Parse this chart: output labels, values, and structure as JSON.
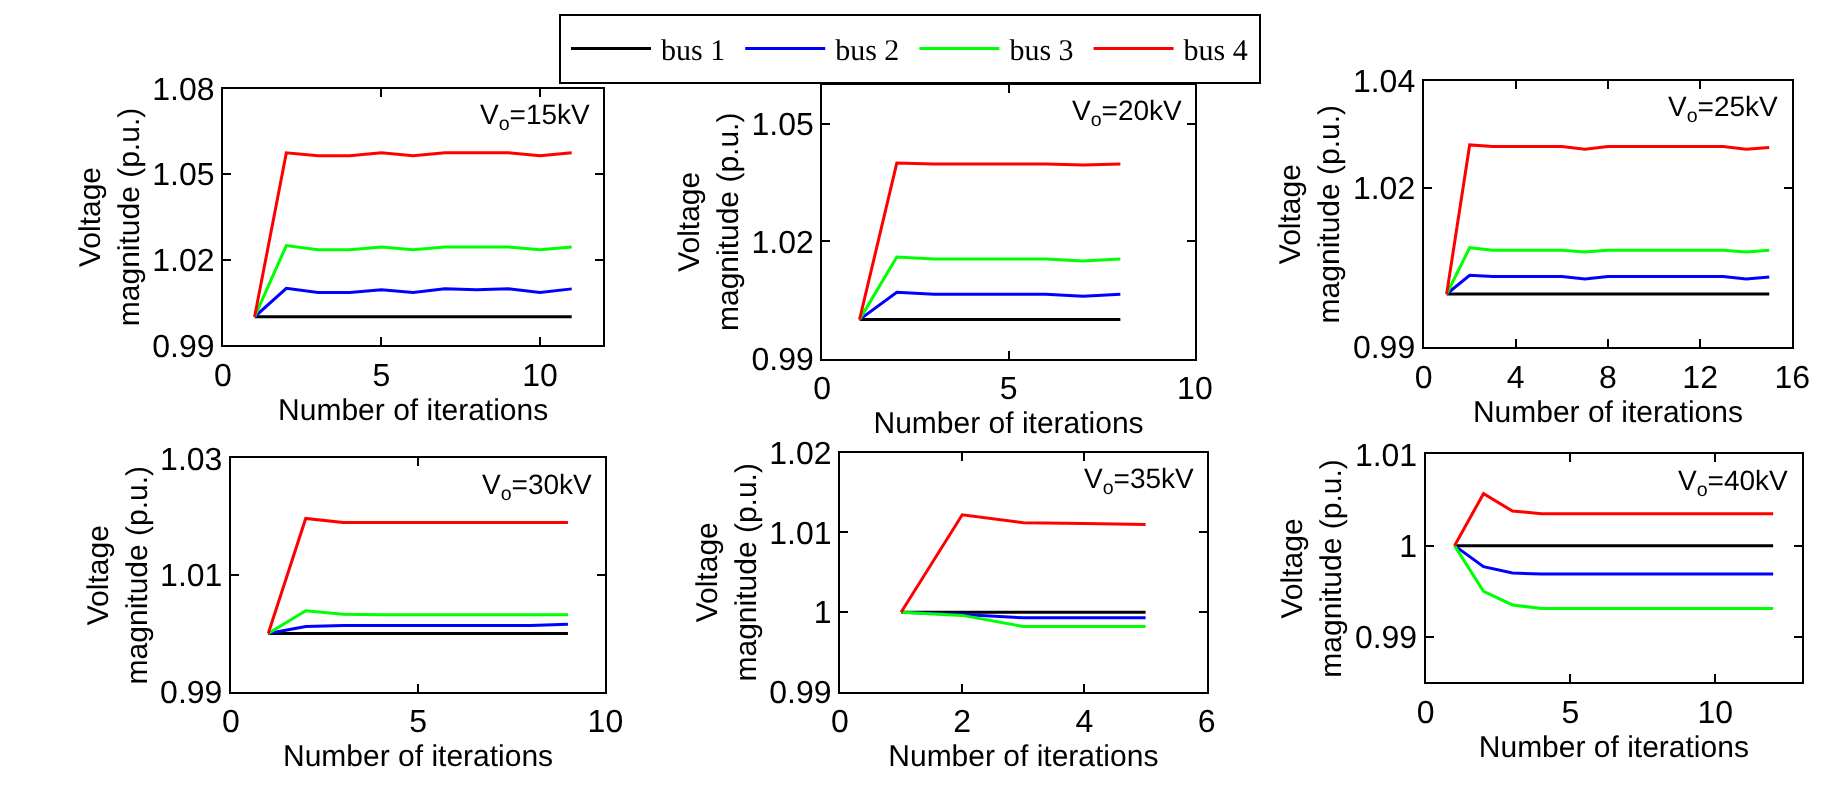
{
  "chart_data": [
    {
      "type": "line",
      "legend": "top",
      "xlabel": "Number of iterations",
      "ylabel": "Voltage\nmagnitude (p.u.)",
      "annotations": [
        "V$_{o}$=15kV"
      ],
      "x": [
        1,
        2,
        3,
        4,
        5,
        6,
        7,
        8,
        9,
        10,
        11
      ],
      "xlim": [
        0,
        12
      ],
      "xticks": [
        0,
        5,
        10
      ],
      "ylim": [
        0.99,
        1.08
      ],
      "yticks": [
        0.99,
        1.02,
        1.05,
        1.08
      ],
      "series": [
        {
          "name": "bus 1",
          "color": "#000000",
          "values": [
            1.0,
            1.0,
            1.0,
            1.0,
            1.0,
            1.0,
            1.0,
            1.0,
            1.0,
            1.0,
            1.0
          ]
        },
        {
          "name": "bus 2",
          "color": "#0000ff",
          "values": [
            1.0,
            1.01,
            1.0085,
            1.0085,
            1.0095,
            1.0085,
            1.0098,
            1.0095,
            1.0098,
            1.0085,
            1.0098
          ]
        },
        {
          "name": "bus 3",
          "color": "#00ff00",
          "values": [
            1.0,
            1.025,
            1.0235,
            1.0235,
            1.0245,
            1.0235,
            1.0245,
            1.0245,
            1.0245,
            1.0235,
            1.0245
          ]
        },
        {
          "name": "bus 4",
          "color": "#ff0000",
          "values": [
            1.0,
            1.0575,
            1.0565,
            1.0565,
            1.0575,
            1.0565,
            1.0575,
            1.0575,
            1.0575,
            1.0565,
            1.0575
          ]
        }
      ]
    },
    {
      "type": "line",
      "xlabel": "Number of iterations",
      "ylabel": "Voltage\nmagnitude (p.u.)",
      "annotations": [
        "V$_{o}$=20kV"
      ],
      "x": [
        1,
        2,
        3,
        4,
        5,
        6,
        7,
        8
      ],
      "xlim": [
        0,
        10
      ],
      "xticks": [
        0,
        5,
        10
      ],
      "ylim": [
        0.99,
        1.06
      ],
      "yticks": [
        0.99,
        1.02,
        1.05
      ],
      "series": [
        {
          "color": "#000000",
          "values": [
            1.0,
            1.0,
            1.0,
            1.0,
            1.0,
            1.0,
            1.0,
            1.0
          ]
        },
        {
          "color": "#0000ff",
          "values": [
            1.0,
            1.007,
            1.0065,
            1.0065,
            1.0065,
            1.0065,
            1.006,
            1.0065
          ]
        },
        {
          "color": "#00ff00",
          "values": [
            1.0,
            1.016,
            1.0155,
            1.0155,
            1.0155,
            1.0155,
            1.015,
            1.0155
          ]
        },
        {
          "color": "#ff0000",
          "values": [
            1.0,
            1.04,
            1.0398,
            1.0398,
            1.0398,
            1.0398,
            1.0395,
            1.0398
          ]
        }
      ]
    },
    {
      "type": "line",
      "xlabel": "Number of iterations",
      "ylabel": "Voltage\nmagnitude (p.u.)",
      "annotations": [
        "V$_{o}$=25kV"
      ],
      "x": [
        1,
        2,
        3,
        4,
        5,
        6,
        7,
        8,
        9,
        10,
        11,
        12,
        13,
        14,
        15
      ],
      "xlim": [
        0,
        16
      ],
      "xticks": [
        0,
        4,
        8,
        12,
        16
      ],
      "ylim": [
        0.99,
        1.04
      ],
      "yticks": [
        0.99,
        1.02,
        1.04
      ],
      "series": [
        {
          "color": "#000000",
          "values": [
            1.0,
            1.0,
            1.0,
            1.0,
            1.0,
            1.0,
            1.0,
            1.0,
            1.0,
            1.0,
            1.0,
            1.0,
            1.0,
            1.0,
            1.0
          ]
        },
        {
          "color": "#0000ff",
          "values": [
            1.0,
            1.0035,
            1.0033,
            1.0033,
            1.0033,
            1.0033,
            1.0028,
            1.0033,
            1.0033,
            1.0033,
            1.0033,
            1.0033,
            1.0033,
            1.0028,
            1.0032
          ]
        },
        {
          "color": "#00ff00",
          "values": [
            1.0,
            1.0087,
            1.0082,
            1.0082,
            1.0082,
            1.0082,
            1.0079,
            1.0082,
            1.0082,
            1.0082,
            1.0082,
            1.0082,
            1.0082,
            1.0079,
            1.0082
          ]
        },
        {
          "color": "#ff0000",
          "values": [
            1.0,
            1.028,
            1.0277,
            1.0277,
            1.0277,
            1.0277,
            1.0272,
            1.0277,
            1.0277,
            1.0277,
            1.0277,
            1.0277,
            1.0277,
            1.0272,
            1.0275
          ]
        }
      ]
    },
    {
      "type": "line",
      "xlabel": "Number of iterations",
      "ylabel": "Voltage\nmagnitude (p.u.)",
      "annotations": [
        "V$_{o}$=30kV"
      ],
      "x": [
        1,
        2,
        3,
        4,
        5,
        6,
        7,
        8,
        9
      ],
      "xlim": [
        0,
        10
      ],
      "xticks": [
        0,
        5,
        10
      ],
      "ylim": [
        0.99,
        1.03
      ],
      "yticks": [
        0.99,
        1.01,
        1.03
      ],
      "series": [
        {
          "color": "#000000",
          "values": [
            1.0,
            1.0,
            1.0,
            1.0,
            1.0,
            1.0,
            1.0,
            1.0,
            1.0
          ]
        },
        {
          "color": "#0000ff",
          "values": [
            1.0,
            1.0012,
            1.0014,
            1.0014,
            1.0014,
            1.0014,
            1.0014,
            1.0014,
            1.0016
          ]
        },
        {
          "color": "#00ff00",
          "values": [
            1.0,
            1.0039,
            1.0033,
            1.0032,
            1.0032,
            1.0032,
            1.0032,
            1.0032,
            1.0032
          ]
        },
        {
          "color": "#ff0000",
          "values": [
            1.0,
            1.0197,
            1.019,
            1.019,
            1.019,
            1.019,
            1.019,
            1.019,
            1.019
          ]
        }
      ]
    },
    {
      "type": "line",
      "xlabel": "Number of iterations",
      "ylabel": "Voltage\nmagnitude (p.u.)",
      "annotations": [
        "V$_{o}$=35kV"
      ],
      "x": [
        1,
        2,
        3,
        4,
        5
      ],
      "xlim": [
        0,
        6
      ],
      "xticks": [
        0,
        2,
        4,
        6
      ],
      "ylim": [
        0.99,
        1.02
      ],
      "yticks": [
        0.99,
        1,
        1.01,
        1.02
      ],
      "series": [
        {
          "color": "#000000",
          "values": [
            1.0,
            1.0,
            1.0,
            1.0,
            1.0
          ]
        },
        {
          "color": "#0000ff",
          "values": [
            1.0,
            0.9997,
            0.9993,
            0.9993,
            0.9993
          ]
        },
        {
          "color": "#00ff00",
          "values": [
            1.0,
            0.9996,
            0.9982,
            0.9982,
            0.9982
          ]
        },
        {
          "color": "#ff0000",
          "values": [
            1.0,
            1.0122,
            1.0112,
            1.0111,
            1.011
          ]
        }
      ]
    },
    {
      "type": "line",
      "xlabel": "Number of iterations",
      "ylabel": "Voltage\nmagnitude (p.u.)",
      "annotations": [
        "V$_{o}$=40kV"
      ],
      "x": [
        1,
        2,
        3,
        4,
        5,
        6,
        7,
        8,
        9,
        10,
        11,
        12
      ],
      "xlim": [
        0,
        13
      ],
      "xticks": [
        0,
        5,
        10
      ],
      "ylim": [
        0.985,
        1.01
      ],
      "yticks": [
        0.99,
        1,
        1.01
      ],
      "series": [
        {
          "color": "#000000",
          "values": [
            1.0,
            1.0,
            1.0,
            1.0,
            1.0,
            1.0,
            1.0,
            1.0,
            1.0,
            1.0,
            1.0,
            1.0
          ]
        },
        {
          "color": "#0000ff",
          "values": [
            1.0,
            0.9977,
            0.997,
            0.9969,
            0.9969,
            0.9969,
            0.9969,
            0.9969,
            0.9969,
            0.9969,
            0.9969,
            0.9969
          ]
        },
        {
          "color": "#00ff00",
          "values": [
            1.0,
            0.995,
            0.9935,
            0.9931,
            0.9931,
            0.9931,
            0.9931,
            0.9931,
            0.9931,
            0.9931,
            0.9931,
            0.9931
          ]
        },
        {
          "color": "#ff0000",
          "values": [
            1.0,
            1.0057,
            1.0038,
            1.0035,
            1.0035,
            1.0035,
            1.0035,
            1.0035,
            1.0035,
            1.0035,
            1.0035,
            1.0035
          ]
        }
      ]
    }
  ]
}
